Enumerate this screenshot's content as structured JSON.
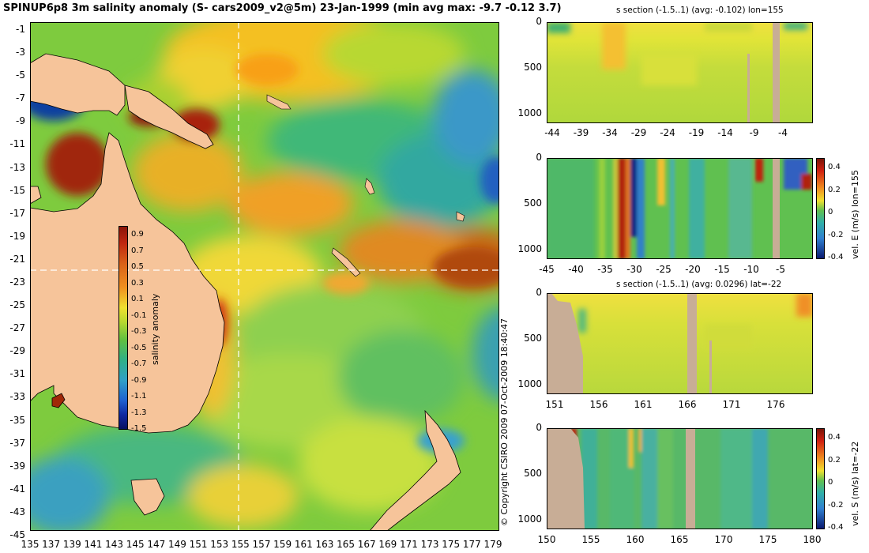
{
  "title": "SPINUP6p8 3m salinity anomaly (S- cars2009_v2@5m) 23-Jan-1999 (min avg max: -9.7 -0.12 3.7)",
  "copyright": "© Copyright CSIRO 2009  07-Oct-2009 18:40:47",
  "colors": {
    "land": "#f6c49a",
    "landSection": "#c8ad96",
    "guideLine": "#ffffff"
  },
  "map": {
    "x_ticks": [
      "135",
      "137",
      "139",
      "141",
      "143",
      "145",
      "147",
      "149",
      "151",
      "153",
      "155",
      "157",
      "159",
      "161",
      "163",
      "165",
      "167",
      "169",
      "171",
      "173",
      "175",
      "177",
      "179"
    ],
    "y_ticks": [
      "-1",
      "-3",
      "-5",
      "-7",
      "-9",
      "-11",
      "-13",
      "-15",
      "-17",
      "-19",
      "-21",
      "-23",
      "-25",
      "-27",
      "-29",
      "-31",
      "-33",
      "-35",
      "-37",
      "-39",
      "-41",
      "-43",
      "-45"
    ],
    "colorbar": {
      "label": "salinity anomaly",
      "ticks": [
        "0.9",
        "0.7",
        "0.5",
        "0.3",
        "0.1",
        "-0.1",
        "-0.3",
        "-0.5",
        "-0.7",
        "-0.9",
        "-1.1",
        "-1.3",
        "-1.5"
      ],
      "range": [
        -1.5,
        0.9
      ]
    }
  },
  "chart_data": [
    {
      "type": "heatmap",
      "title": "SPINUP6p8 3m salinity anomaly (S- cars2009_v2@5m) 23-Jan-1999 (min avg max: -9.7 -0.12 3.7)",
      "xlim": [
        135,
        180
      ],
      "ylim": [
        -45,
        0
      ],
      "colorbar_label": "salinity anomaly",
      "colorbar_range": [
        -1.5,
        0.9
      ],
      "stats": {
        "min": -9.7,
        "avg": -0.12,
        "max": 3.7
      },
      "section_lines": {
        "lon": 155,
        "lat": -22
      }
    },
    {
      "type": "heatmap",
      "title": "s section (-1.5..1) (avg: -0.102) lon=155",
      "x_ticks": [
        "-44",
        "-39",
        "-34",
        "-29",
        "-24",
        "-19",
        "-14",
        "-9",
        "-4"
      ],
      "y_ticks": [
        "0",
        "500",
        "1000"
      ],
      "xlim": [
        -45,
        0
      ],
      "ylim": [
        1050,
        0
      ]
    },
    {
      "type": "heatmap",
      "title": "",
      "x_ticks": [
        "-45",
        "-40",
        "-35",
        "-30",
        "-25",
        "-20",
        "-15",
        "-10",
        "-5"
      ],
      "y_ticks": [
        "0",
        "500",
        "1000"
      ],
      "colorbar_label": "vel. E (m/s) lon=155",
      "colorbar_ticks": [
        "0.4",
        "0.2",
        "0",
        "-0.2",
        "-0.4"
      ],
      "colorbar_range": [
        -0.45,
        0.45
      ]
    },
    {
      "type": "heatmap",
      "title": "s section (-1.5..1) (avg: 0.0296) lat=-22",
      "x_ticks": [
        "151",
        "156",
        "161",
        "166",
        "171",
        "176"
      ],
      "y_ticks": [
        "0",
        "500",
        "1000"
      ],
      "xlim": [
        150,
        180
      ]
    },
    {
      "type": "heatmap",
      "title": "",
      "x_ticks": [
        "150",
        "155",
        "160",
        "165",
        "170",
        "175",
        "180"
      ],
      "y_ticks": [
        "0",
        "500",
        "1000"
      ],
      "colorbar_label": "vel. S (m/s) lat=-22",
      "colorbar_ticks": [
        "0.4",
        "0.2",
        "0",
        "-0.2",
        "-0.4"
      ],
      "colorbar_range": [
        -0.45,
        0.45
      ]
    }
  ]
}
